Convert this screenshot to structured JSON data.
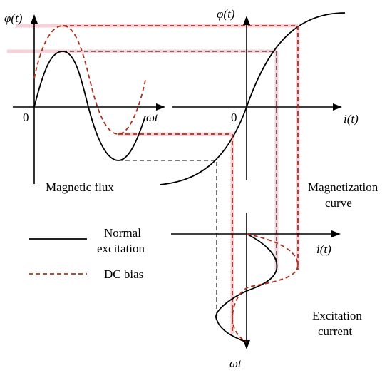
{
  "quadrants": {
    "flux": {
      "y_label": "φ(t)",
      "x_label": "ωt",
      "origin": "0",
      "caption": "Magnetic flux"
    },
    "magnetization": {
      "y_label": "φ(t)",
      "x_label": "i(t)",
      "origin": "0",
      "caption_line1": "Magnetization",
      "caption_line2": "curve"
    },
    "current": {
      "x_label": "i(t)",
      "y_label": "ωt",
      "caption_line1": "Excitation",
      "caption_line2": "current"
    }
  },
  "legend": {
    "normal_line1": "Normal",
    "normal_line2": "excitation",
    "dc_bias": "DC bias"
  },
  "colors": {
    "normal": "#000000",
    "dc_bias": "#a8321e",
    "highlight": "#f2b8c6"
  }
}
